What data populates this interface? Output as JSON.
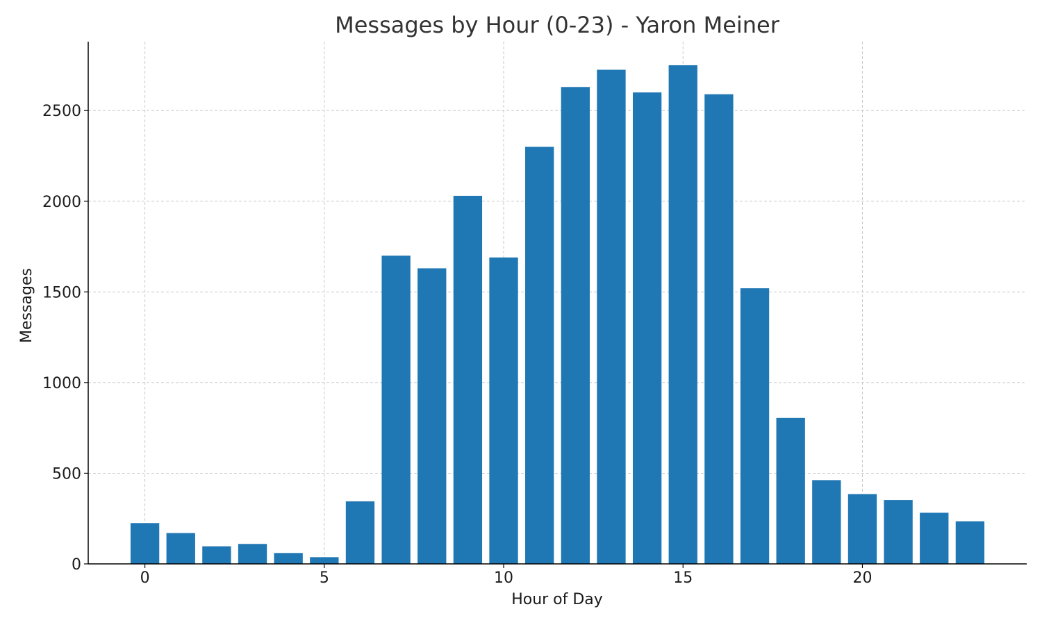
{
  "chart_data": {
    "type": "bar",
    "title": "Messages by Hour (0-23) - Yaron Meiner",
    "xlabel": "Hour of Day",
    "ylabel": "Messages",
    "x": [
      0,
      1,
      2,
      3,
      4,
      5,
      6,
      7,
      8,
      9,
      10,
      11,
      12,
      13,
      14,
      15,
      16,
      17,
      18,
      19,
      20,
      21,
      22,
      23
    ],
    "values": [
      225,
      170,
      97,
      110,
      60,
      37,
      345,
      1700,
      1630,
      2030,
      1690,
      2300,
      2630,
      2725,
      2600,
      2750,
      2590,
      1520,
      805,
      462,
      385,
      352,
      282,
      235
    ],
    "xticks": [
      0,
      5,
      10,
      15,
      20
    ],
    "yticks": [
      0,
      500,
      1000,
      1500,
      2000,
      2500
    ],
    "xlim": [
      -1.58,
      24.58
    ],
    "ylim": [
      0,
      2880
    ],
    "bar_color": "#1f77b4",
    "grid": true
  }
}
